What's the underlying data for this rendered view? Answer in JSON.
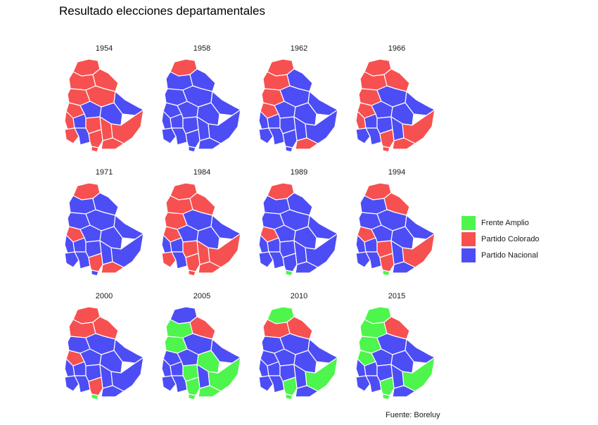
{
  "title": "Resultado elecciones departamentales",
  "source": "Fuente: Boreluy",
  "colors": {
    "FA": "#4df54d",
    "PC": "#f75050",
    "PN": "#4d4df5",
    "border": "#ffffff"
  },
  "legend": [
    {
      "key": "FA",
      "label": "Frente Amplio"
    },
    {
      "key": "PC",
      "label": "Partido Colorado"
    },
    {
      "key": "PN",
      "label": "Partido Nacional"
    }
  ],
  "departments": [
    "Artigas",
    "Salto",
    "Rivera",
    "Paysandu",
    "Tacuarembo",
    "Cerro Largo",
    "Rio Negro",
    "Durazno",
    "Treinta y Tres",
    "Soriano",
    "Flores",
    "Florida",
    "Lavalleja",
    "Rocha",
    "Colonia",
    "San Jose",
    "Canelones",
    "Maldonado",
    "Montevideo"
  ],
  "elections": [
    {
      "year": "1954",
      "winners": [
        "PC",
        "PC",
        "PC",
        "PC",
        "PC",
        "PN",
        "PC",
        "PN",
        "PN",
        "PC",
        "PN",
        "PC",
        "PC",
        "PC",
        "PC",
        "PN",
        "PC",
        "PC",
        "PC"
      ]
    },
    {
      "year": "1958",
      "winners": [
        "PC",
        "PN",
        "PN",
        "PN",
        "PN",
        "PN",
        "PN",
        "PN",
        "PN",
        "PN",
        "PN",
        "PN",
        "PN",
        "PN",
        "PN",
        "PN",
        "PN",
        "PN",
        "PN"
      ]
    },
    {
      "year": "1962",
      "winners": [
        "PC",
        "PC",
        "PN",
        "PC",
        "PN",
        "PN",
        "PC",
        "PN",
        "PN",
        "PN",
        "PN",
        "PN",
        "PN",
        "PN",
        "PN",
        "PN",
        "PN",
        "PC",
        "PN"
      ]
    },
    {
      "year": "1966",
      "winners": [
        "PC",
        "PC",
        "PC",
        "PC",
        "PN",
        "PN",
        "PC",
        "PN",
        "PN",
        "PC",
        "PN",
        "PN",
        "PN",
        "PC",
        "PN",
        "PN",
        "PC",
        "PC",
        "PC"
      ]
    },
    {
      "year": "1971",
      "winners": [
        "PC",
        "PN",
        "PN",
        "PN",
        "PN",
        "PN",
        "PC",
        "PN",
        "PN",
        "PN",
        "PN",
        "PN",
        "PN",
        "PN",
        "PN",
        "PN",
        "PC",
        "PC",
        "PN"
      ]
    },
    {
      "year": "1984",
      "winners": [
        "PC",
        "PC",
        "PC",
        "PC",
        "PN",
        "PN",
        "PC",
        "PN",
        "PN",
        "PN",
        "PN",
        "PC",
        "PC",
        "PC",
        "PC",
        "PN",
        "PC",
        "PC",
        "PC"
      ]
    },
    {
      "year": "1989",
      "winners": [
        "PC",
        "PN",
        "PN",
        "PN",
        "PN",
        "PN",
        "PC",
        "PN",
        "PN",
        "PN",
        "PN",
        "PN",
        "PN",
        "PN",
        "PN",
        "PN",
        "PN",
        "PN",
        "FA"
      ]
    },
    {
      "year": "1994",
      "winners": [
        "PC",
        "PN",
        "PC",
        "PN",
        "PN",
        "PN",
        "PC",
        "PN",
        "PN",
        "PN",
        "PN",
        "PC",
        "PN",
        "PC",
        "PN",
        "PN",
        "PC",
        "PN",
        "FA"
      ]
    },
    {
      "year": "2000",
      "winners": [
        "PC",
        "PC",
        "PC",
        "PN",
        "PN",
        "PN",
        "PC",
        "PN",
        "PN",
        "PN",
        "PN",
        "PN",
        "PN",
        "PN",
        "PN",
        "PN",
        "PC",
        "PN",
        "FA"
      ]
    },
    {
      "year": "2005",
      "winners": [
        "PN",
        "FA",
        "PC",
        "FA",
        "PN",
        "PN",
        "PN",
        "PN",
        "FA",
        "PN",
        "PN",
        "FA",
        "PN",
        "FA",
        "PN",
        "PN",
        "FA",
        "FA",
        "FA"
      ]
    },
    {
      "year": "2010",
      "winners": [
        "FA",
        "PC",
        "PC",
        "PN",
        "PN",
        "PN",
        "PN",
        "PN",
        "PN",
        "PN",
        "PN",
        "PN",
        "PN",
        "FA",
        "PN",
        "PN",
        "FA",
        "PN",
        "FA"
      ]
    },
    {
      "year": "2015",
      "winners": [
        "FA",
        "FA",
        "PC",
        "FA",
        "PN",
        "PN",
        "FA",
        "PN",
        "PN",
        "PN",
        "PN",
        "PN",
        "PN",
        "FA",
        "PN",
        "PN",
        "FA",
        "PN",
        "FA"
      ]
    }
  ]
}
